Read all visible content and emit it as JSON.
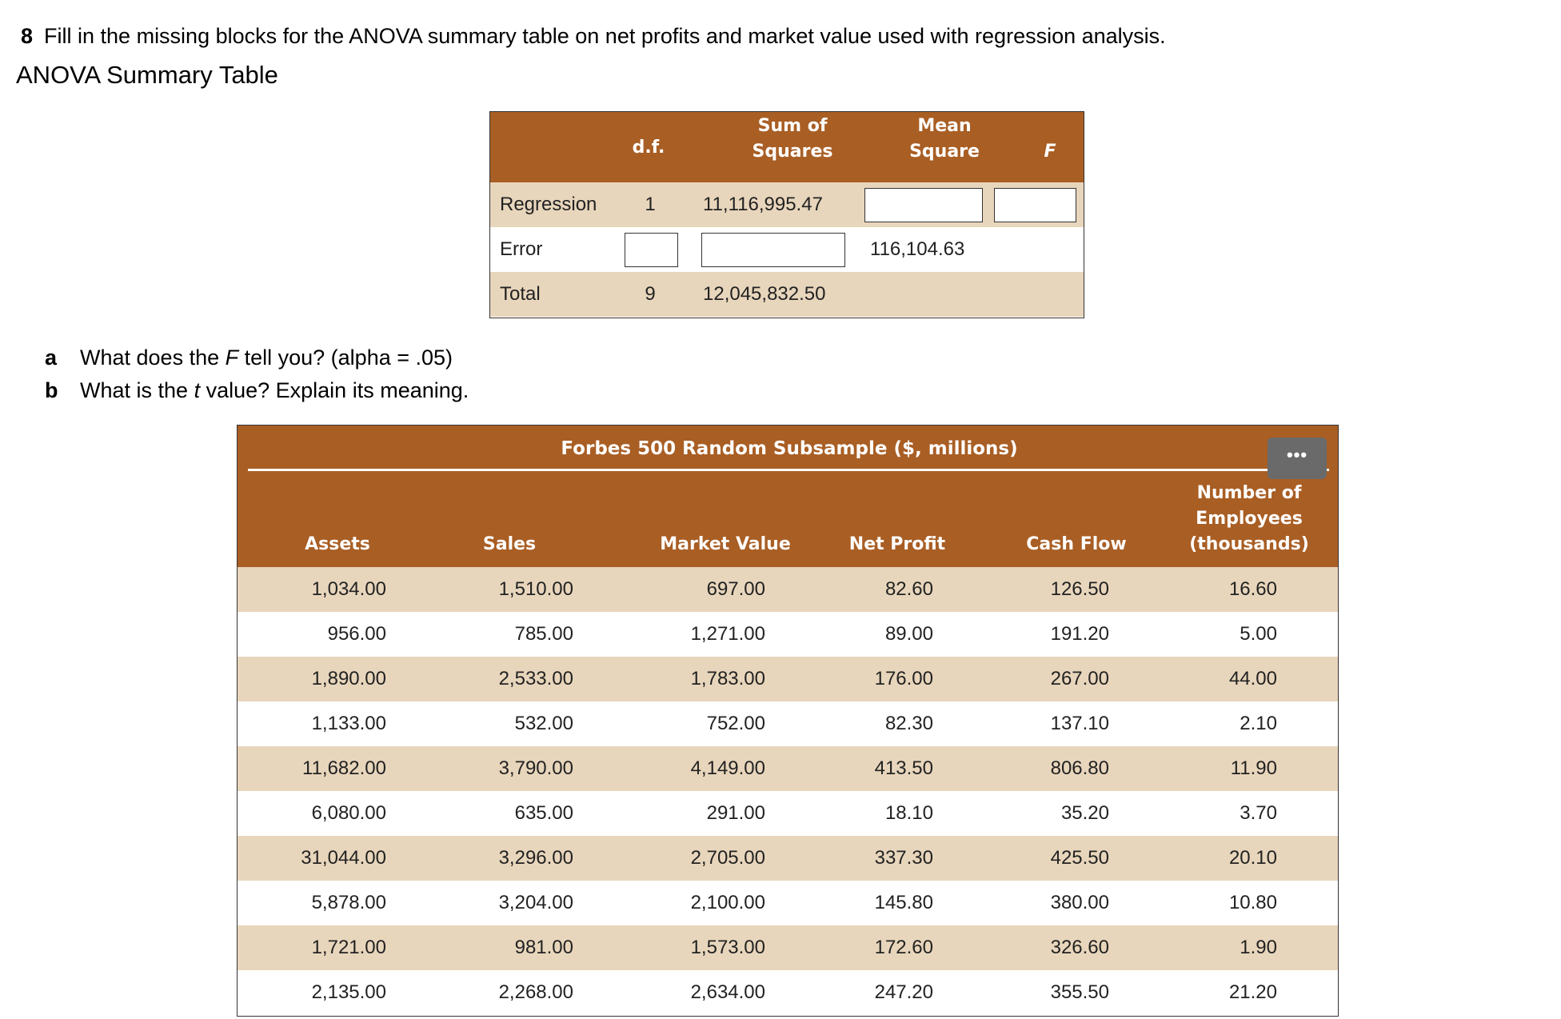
{
  "question": {
    "number": "8",
    "text": "Fill in the missing blocks for the ANOVA summary table on net profits and market value used with regression analysis."
  },
  "section_title": "ANOVA Summary Table",
  "anova": {
    "headers": {
      "df": "d.f.",
      "ss_line1": "Sum of",
      "ss_line2": "Squares",
      "ms_line1": "Mean",
      "ms_line2": "Square",
      "f": "F"
    },
    "rows": [
      {
        "source": "Regression",
        "df": "1",
        "ss": "11,116,995.47",
        "ms": "",
        "f": ""
      },
      {
        "source": "Error",
        "df": "",
        "ss": "",
        "ms": "116,104.63",
        "f": ""
      },
      {
        "source": "Total",
        "df": "9",
        "ss": "12,045,832.50",
        "ms": "",
        "f": ""
      }
    ]
  },
  "sub_questions": [
    {
      "letter": "a",
      "before": "What does the ",
      "italic": "F",
      "after": " tell you? (alpha = .05)"
    },
    {
      "letter": "b",
      "before": "What is the ",
      "italic": "t",
      "after": " value? Explain its meaning."
    }
  ],
  "forbes": {
    "title": "Forbes 500 Random Subsample ($, millions)",
    "menu_label": "•••",
    "columns": [
      "Assets",
      "Sales",
      "Market Value",
      "Net Profit",
      "Cash Flow"
    ],
    "employees_header": [
      "Number of",
      "Employees",
      "(thousands)"
    ],
    "rows": [
      [
        "1,034.00",
        "1,510.00",
        "697.00",
        "82.60",
        "126.50",
        "16.60"
      ],
      [
        "956.00",
        "785.00",
        "1,271.00",
        "89.00",
        "191.20",
        "5.00"
      ],
      [
        "1,890.00",
        "2,533.00",
        "1,783.00",
        "176.00",
        "267.00",
        "44.00"
      ],
      [
        "1,133.00",
        "532.00",
        "752.00",
        "82.30",
        "137.10",
        "2.10"
      ],
      [
        "11,682.00",
        "3,790.00",
        "4,149.00",
        "413.50",
        "806.80",
        "11.90"
      ],
      [
        "6,080.00",
        "635.00",
        "291.00",
        "18.10",
        "35.20",
        "3.70"
      ],
      [
        "31,044.00",
        "3,296.00",
        "2,705.00",
        "337.30",
        "425.50",
        "20.10"
      ],
      [
        "5,878.00",
        "3,204.00",
        "2,100.00",
        "145.80",
        "380.00",
        "10.80"
      ],
      [
        "1,721.00",
        "981.00",
        "1,573.00",
        "172.60",
        "326.60",
        "1.90"
      ],
      [
        "2,135.00",
        "2,268.00",
        "2,634.00",
        "247.20",
        "355.50",
        "21.20"
      ]
    ]
  }
}
